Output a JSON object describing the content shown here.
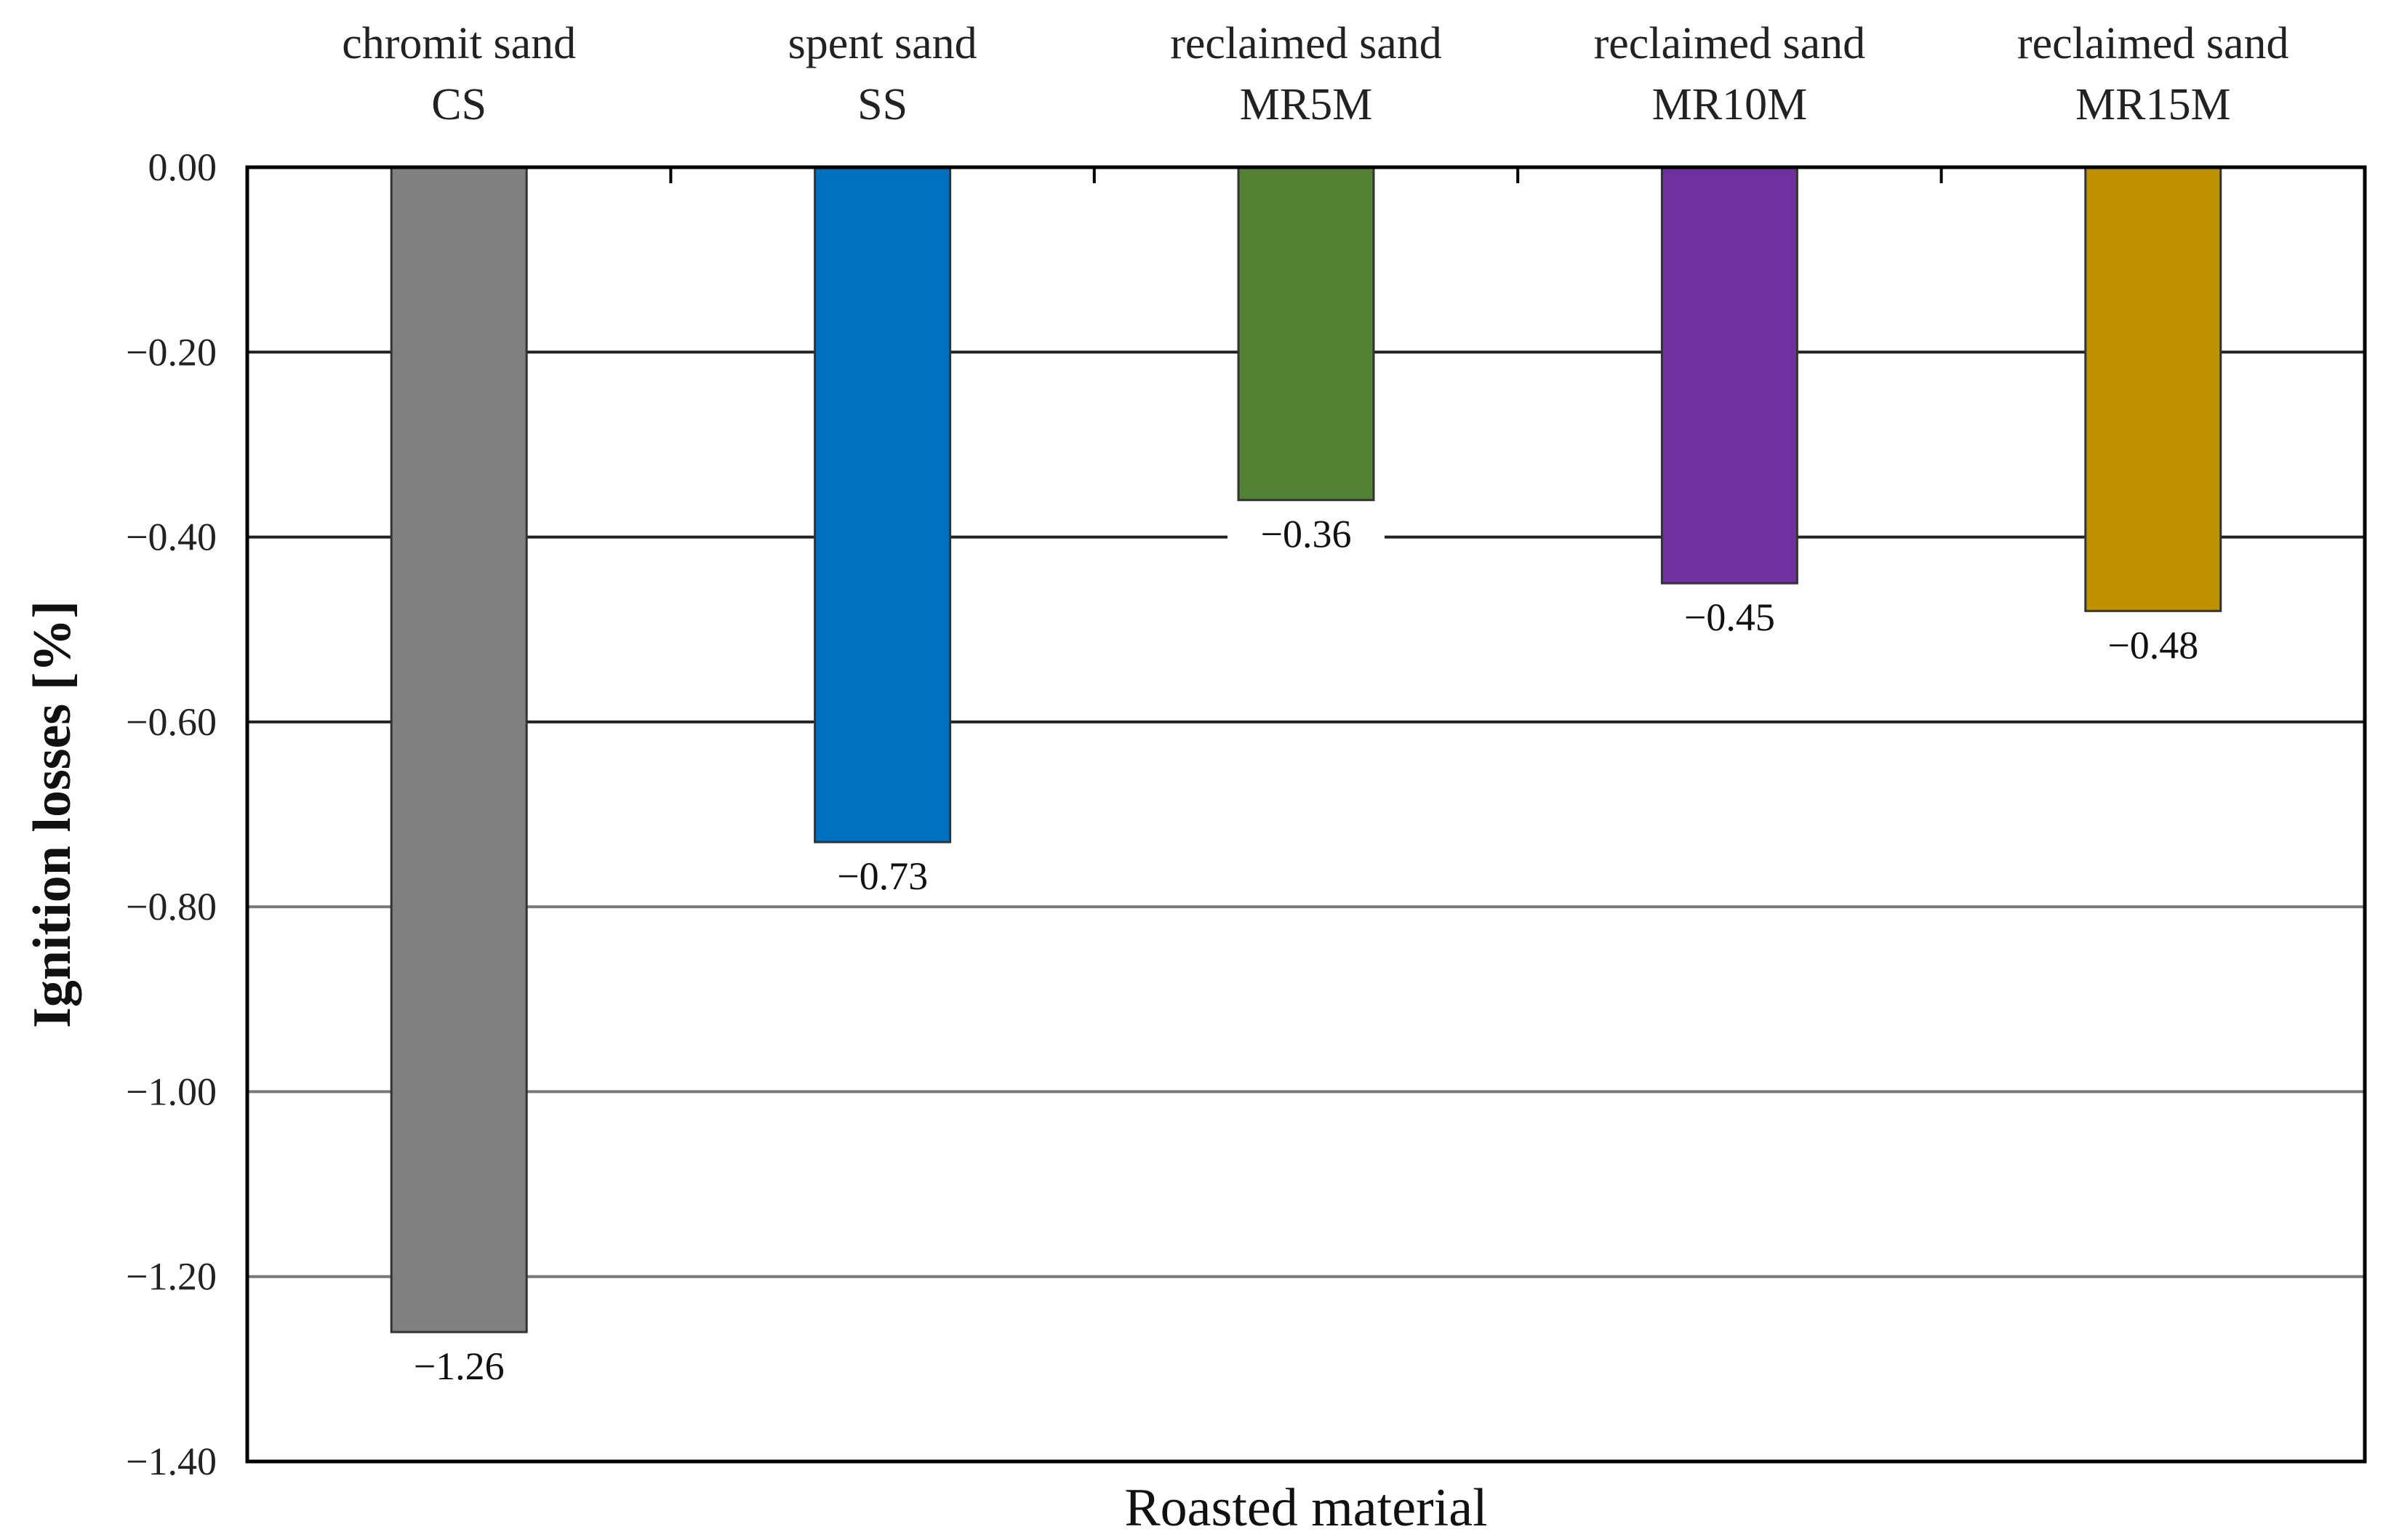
{
  "chart_data": {
    "type": "bar",
    "orientation": "vertical",
    "categories": [
      [
        "chromit sand",
        "CS"
      ],
      [
        "spent sand",
        "SS"
      ],
      [
        "reclaimed sand",
        "MR5M"
      ],
      [
        "reclaimed sand",
        "MR10M"
      ],
      [
        "reclaimed sand",
        "MR15M"
      ]
    ],
    "values": [
      -1.26,
      -0.73,
      -0.36,
      -0.45,
      -0.48
    ],
    "data_labels": [
      "−1.26",
      "−0.73",
      "−0.36",
      "−0.45",
      "−0.48"
    ],
    "colors": [
      "#808080",
      "#0070c0",
      "#548235",
      "#7030a0",
      "#bf9000"
    ],
    "xlabel": "Roasted material",
    "ylabel": "Ignition losses [%]",
    "ylim": [
      -1.4,
      0
    ],
    "yticks": [
      0,
      -0.2,
      -0.4,
      -0.6,
      -0.8,
      -1.0,
      -1.2,
      -1.4
    ],
    "ytick_labels": [
      "0.00",
      "−0.20",
      "−0.40",
      "−0.60",
      "−0.80",
      "−1.00",
      "−1.20",
      "−1.40"
    ],
    "category_axis_position": "top",
    "grid": true,
    "legend": "none"
  }
}
